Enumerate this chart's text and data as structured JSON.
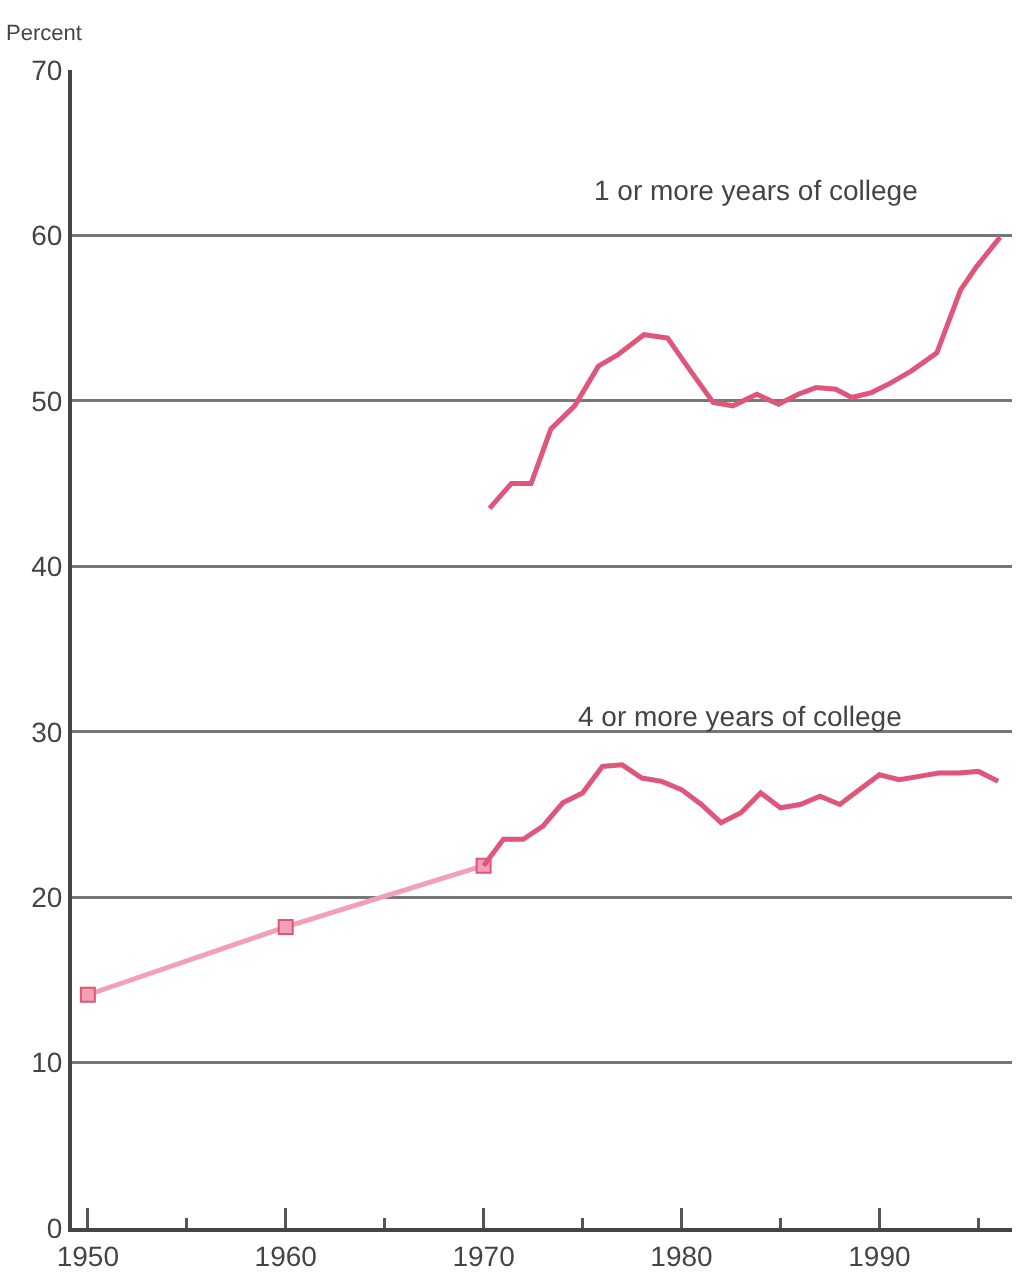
{
  "chart_data": {
    "type": "line",
    "ylabel": "Percent",
    "xlim": [
      1949.2,
      1996.7
    ],
    "xticks": [
      1950,
      1960,
      1970,
      1980,
      1990
    ],
    "ylim": [
      0,
      70
    ],
    "yticks": [
      0,
      10,
      20,
      30,
      40,
      50,
      60,
      70
    ],
    "grid": "y",
    "legend": false,
    "line_style": "solid",
    "series": [
      {
        "name": "1 or more years of college",
        "color": "#e0567a",
        "marker": "none",
        "x": [
          1970.3,
          1971.4,
          1972.4,
          1973.4,
          1974.6,
          1975.8,
          1976.8,
          1978.1,
          1979.3,
          1980.4,
          1981.6,
          1982.6,
          1983.8,
          1984.9,
          1985.9,
          1986.8,
          1987.8,
          1988.6,
          1989.6,
          1990.6,
          1991.6,
          1992.9,
          1994.1,
          1994.9,
          1996.1
        ],
        "values": [
          43.5,
          45.0,
          45.0,
          48.3,
          49.7,
          52.1,
          52.8,
          54.0,
          53.8,
          51.9,
          49.9,
          49.7,
          50.4,
          49.8,
          50.4,
          50.8,
          50.7,
          50.2,
          50.5,
          51.1,
          51.8,
          52.9,
          56.7,
          58.1,
          59.9
        ]
      },
      {
        "color": "#f2a0b6",
        "marker": "square",
        "x": [
          1950,
          1960,
          1970
        ],
        "values": [
          14.1,
          18.2,
          21.9
        ]
      },
      {
        "name": "4 or more years of college",
        "color": "#e0567a",
        "marker": "none",
        "x": [
          1970,
          1971,
          1972,
          1973,
          1974,
          1975,
          1976,
          1977,
          1978,
          1979,
          1980,
          1981,
          1982,
          1983,
          1984,
          1985,
          1986,
          1987,
          1988,
          1989,
          1990,
          1991,
          1992,
          1993,
          1994,
          1995,
          1996
        ],
        "values": [
          21.9,
          23.5,
          23.5,
          24.3,
          25.7,
          26.3,
          27.9,
          28.0,
          27.2,
          27.0,
          26.5,
          25.6,
          24.5,
          25.1,
          26.3,
          25.4,
          25.6,
          26.1,
          25.6,
          26.5,
          27.4,
          27.1,
          27.3,
          27.5,
          27.5,
          27.6,
          27.0
        ]
      }
    ]
  }
}
